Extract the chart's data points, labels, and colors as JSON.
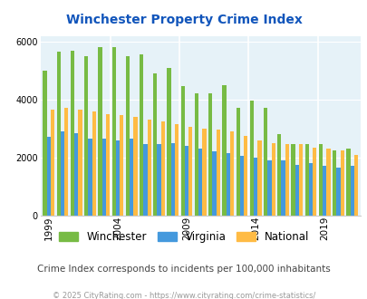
{
  "title": "Winchester Property Crime Index",
  "years": [
    1999,
    2000,
    2001,
    2002,
    2003,
    2004,
    2005,
    2006,
    2007,
    2008,
    2009,
    2010,
    2011,
    2012,
    2013,
    2014,
    2015,
    2016,
    2017,
    2018,
    2019,
    2020,
    2021
  ],
  "winchester": [
    5000,
    5650,
    5700,
    5500,
    5800,
    5820,
    5500,
    5550,
    4900,
    5100,
    4450,
    4200,
    4200,
    4500,
    3700,
    3950,
    3700,
    2800,
    2450,
    2450,
    2450,
    2250,
    2300
  ],
  "virginia": [
    2700,
    2900,
    2850,
    2650,
    2650,
    2600,
    2650,
    2450,
    2450,
    2500,
    2400,
    2300,
    2200,
    2150,
    2050,
    1980,
    1900,
    1900,
    1750,
    1800,
    1700,
    1650,
    1700
  ],
  "national": [
    3650,
    3700,
    3650,
    3600,
    3500,
    3450,
    3400,
    3300,
    3250,
    3150,
    3050,
    3000,
    2950,
    2900,
    2750,
    2600,
    2500,
    2450,
    2450,
    2350,
    2300,
    2250,
    2100
  ],
  "winchester_color": "#77bb44",
  "virginia_color": "#4499dd",
  "national_color": "#ffbb44",
  "bg_color": "#e6f2f8",
  "title_color": "#1155bb",
  "subtitle": "Crime Index corresponds to incidents per 100,000 inhabitants",
  "footer": "© 2025 CityRating.com - https://www.cityrating.com/crime-statistics/",
  "subtitle_color": "#444444",
  "footer_color": "#999999",
  "ylim": [
    0,
    6200
  ],
  "yticks": [
    0,
    2000,
    4000,
    6000
  ],
  "xtick_labels": [
    1999,
    2004,
    2009,
    2014,
    2019
  ],
  "bar_width": 0.28,
  "figsize": [
    4.06,
    3.3
  ],
  "dpi": 100
}
